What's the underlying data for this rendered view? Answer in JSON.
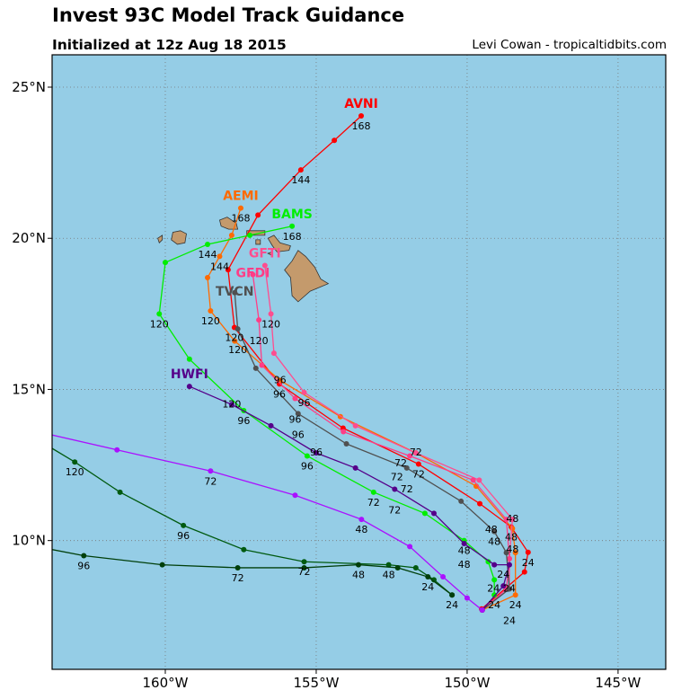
{
  "header": {
    "title": "Invest 93C Model Track Guidance",
    "subtitle": "Initialized at 12z Aug 18 2015",
    "credit": "Levi Cowan - tropicaltidbits.com"
  },
  "map": {
    "extent": {
      "lon_min": -163.75,
      "lon_max": -143.42,
      "lat_min": 5.74,
      "lat_max": 26.07
    },
    "ocean_color": "#95cde6",
    "land_color": "#c49a6c",
    "lat_ticks": [
      {
        "v": 25,
        "t": "25°N"
      },
      {
        "v": 20,
        "t": "20°N"
      },
      {
        "v": 15,
        "t": "15°N"
      },
      {
        "v": 10,
        "t": "10°N"
      }
    ],
    "lon_ticks": [
      {
        "v": -160,
        "t": "160°W"
      },
      {
        "v": -155,
        "t": "155°W"
      },
      {
        "v": -150,
        "t": "150°W"
      },
      {
        "v": -145,
        "t": "145°W"
      }
    ],
    "islands": [
      {
        "name": "Niihau",
        "pts": [
          [
            -160.25,
            20.0
          ],
          [
            -160.1,
            20.1
          ],
          [
            -160.1,
            19.95
          ],
          [
            -160.2,
            19.85
          ]
        ]
      },
      {
        "name": "Kauai",
        "pts": [
          [
            -159.75,
            20.2
          ],
          [
            -159.5,
            20.25
          ],
          [
            -159.3,
            20.15
          ],
          [
            -159.35,
            19.85
          ],
          [
            -159.6,
            19.8
          ],
          [
            -159.8,
            19.95
          ]
        ]
      },
      {
        "name": "Oahu",
        "pts": [
          [
            -158.2,
            20.6
          ],
          [
            -157.95,
            20.7
          ],
          [
            -157.65,
            20.5
          ],
          [
            -157.6,
            20.3
          ],
          [
            -157.9,
            20.3
          ],
          [
            -158.15,
            20.4
          ]
        ]
      },
      {
        "name": "Molokai",
        "pts": [
          [
            -157.3,
            20.25
          ],
          [
            -156.7,
            20.25
          ],
          [
            -156.7,
            20.1
          ],
          [
            -157.3,
            20.1
          ]
        ]
      },
      {
        "name": "Lanai",
        "pts": [
          [
            -157.0,
            19.95
          ],
          [
            -156.85,
            19.95
          ],
          [
            -156.85,
            19.8
          ],
          [
            -157.0,
            19.8
          ]
        ]
      },
      {
        "name": "Maui",
        "pts": [
          [
            -156.6,
            20.0
          ],
          [
            -156.4,
            20.1
          ],
          [
            -156.2,
            19.85
          ],
          [
            -155.85,
            19.75
          ],
          [
            -155.9,
            19.6
          ],
          [
            -156.3,
            19.55
          ],
          [
            -156.45,
            19.75
          ]
        ]
      },
      {
        "name": "Kahoolawe",
        "pts": [
          [
            -156.6,
            19.5
          ],
          [
            -156.45,
            19.55
          ],
          [
            -156.5,
            19.45
          ]
        ]
      },
      {
        "name": "Hawaii",
        "pts": [
          [
            -155.8,
            19.25
          ],
          [
            -155.6,
            19.6
          ],
          [
            -155.35,
            19.4
          ],
          [
            -155.05,
            19.05
          ],
          [
            -154.85,
            18.65
          ],
          [
            -154.6,
            18.5
          ],
          [
            -155.2,
            18.25
          ],
          [
            -155.6,
            17.9
          ],
          [
            -155.8,
            18.1
          ],
          [
            -155.85,
            18.7
          ],
          [
            -156.05,
            18.95
          ]
        ]
      }
    ]
  },
  "tracks": [
    {
      "name": "AVNI",
      "color": "#ff0000",
      "show_name": true,
      "pts": [
        [
          -149.52,
          7.74
        ],
        [
          -148.1,
          8.96
        ],
        [
          -147.98,
          9.61
        ],
        [
          -148.54,
          10.45
        ],
        [
          -149.58,
          11.22
        ],
        [
          -151.61,
          12.53
        ],
        [
          -154.11,
          13.72
        ],
        [
          -156.22,
          15.18
        ],
        [
          -157.71,
          17.05
        ],
        [
          -157.92,
          18.96
        ],
        [
          -156.93,
          20.77
        ],
        [
          -155.51,
          22.26
        ],
        [
          -154.4,
          23.24
        ],
        [
          -153.51,
          24.05
        ]
      ],
      "labels": [
        {
          "i": 2,
          "t": "24"
        },
        {
          "i": 3,
          "t": "48"
        },
        {
          "i": 5,
          "t": "72"
        },
        {
          "i": 7,
          "t": "96"
        },
        {
          "i": 8,
          "t": "120"
        },
        {
          "i": 11,
          "t": "144"
        },
        {
          "i": 13,
          "t": "168"
        }
      ]
    },
    {
      "name": "AEMI",
      "color": "#ff6a00",
      "show_name": true,
      "pts": [
        [
          -149.5,
          7.7
        ],
        [
          -148.4,
          8.2
        ],
        [
          -148.4,
          9.6
        ],
        [
          -148.5,
          10.4
        ],
        [
          -149.7,
          11.8
        ],
        [
          -151.7,
          12.9
        ],
        [
          -154.2,
          14.1
        ],
        [
          -156.2,
          15.3
        ],
        [
          -157.7,
          16.6
        ],
        [
          -158.5,
          17.6
        ],
        [
          -158.6,
          18.7
        ],
        [
          -158.2,
          19.4
        ],
        [
          -157.8,
          20.1
        ],
        [
          -157.5,
          21.0
        ]
      ],
      "labels": [
        {
          "i": 1,
          "t": "24"
        },
        {
          "i": 3,
          "t": "48"
        },
        {
          "i": 5,
          "t": "72"
        },
        {
          "i": 7,
          "t": "96"
        },
        {
          "i": 9,
          "t": "120"
        },
        {
          "i": 11,
          "t": "144"
        },
        {
          "i": 13,
          "t": "168"
        }
      ]
    },
    {
      "name": "BAMS",
      "color": "#00ee00",
      "show_name": true,
      "pts": [
        [
          -149.1,
          8.2
        ],
        [
          -149.1,
          8.7
        ],
        [
          -149.3,
          9.3
        ],
        [
          -150.1,
          10.0
        ],
        [
          -151.4,
          10.9
        ],
        [
          -153.1,
          11.6
        ],
        [
          -155.3,
          12.8
        ],
        [
          -157.4,
          14.3
        ],
        [
          -159.2,
          16.0
        ],
        [
          -160.2,
          17.5
        ],
        [
          -160.0,
          19.2
        ],
        [
          -158.6,
          19.8
        ],
        [
          -157.2,
          20.1
        ],
        [
          -155.8,
          20.4
        ]
      ],
      "labels": [
        {
          "i": 0,
          "t": "24"
        },
        {
          "i": 3,
          "t": "48"
        },
        {
          "i": 5,
          "t": "72"
        },
        {
          "i": 6,
          "t": "96"
        },
        {
          "i": 7,
          "t": "96"
        },
        {
          "i": 9,
          "t": "120"
        },
        {
          "i": 11,
          "t": "144"
        },
        {
          "i": 13,
          "t": "168"
        }
      ]
    },
    {
      "name": "GFTI",
      "color": "#ff4d8f",
      "show_name": true,
      "pts": [
        [
          -149.5,
          7.7
        ],
        [
          -148.6,
          8.4
        ],
        [
          -148.6,
          9.4
        ],
        [
          -148.5,
          10.7
        ],
        [
          -149.6,
          12.0
        ],
        [
          -151.7,
          12.9
        ],
        [
          -153.7,
          13.8
        ],
        [
          -155.4,
          14.9
        ],
        [
          -156.4,
          16.2
        ],
        [
          -156.5,
          17.5
        ],
        [
          -156.7,
          19.1
        ]
      ],
      "labels": [
        {
          "i": 1,
          "t": "24"
        },
        {
          "i": 3,
          "t": "48"
        },
        {
          "i": 5,
          "t": "72"
        },
        {
          "i": 7,
          "t": "96"
        },
        {
          "i": 9,
          "t": "120"
        }
      ]
    },
    {
      "name": "GFDI",
      "color": "#ff3d86",
      "show_name": true,
      "pts": [
        [
          -149.5,
          7.7
        ],
        [
          -148.7,
          8.4
        ],
        [
          -148.6,
          9.4
        ],
        [
          -148.7,
          10.7
        ],
        [
          -149.8,
          12.0
        ],
        [
          -151.9,
          12.8
        ],
        [
          -154.1,
          13.6
        ],
        [
          -155.7,
          14.7
        ],
        [
          -156.8,
          15.8
        ],
        [
          -156.9,
          17.3
        ],
        [
          -157.1,
          18.8
        ]
      ],
      "labels": [
        {
          "i": 1,
          "t": "24"
        },
        {
          "i": 3,
          "t": "48"
        },
        {
          "i": 5,
          "t": "72"
        },
        {
          "i": 7,
          "t": "96"
        },
        {
          "i": 9,
          "t": "120"
        }
      ]
    },
    {
      "name": "TVCN",
      "color": "#505050",
      "show_name": true,
      "pts": [
        [
          -149.5,
          7.7
        ],
        [
          -148.6,
          8.4
        ],
        [
          -148.7,
          9.6
        ],
        [
          -149.1,
          10.3
        ],
        [
          -150.2,
          11.3
        ],
        [
          -152.0,
          12.4
        ],
        [
          -154.0,
          13.2
        ],
        [
          -155.6,
          14.2
        ],
        [
          -157.0,
          15.7
        ],
        [
          -157.6,
          17.0
        ],
        [
          -157.7,
          18.2
        ]
      ],
      "labels": [
        {
          "i": 1,
          "t": "24"
        },
        {
          "i": 3,
          "t": "48"
        },
        {
          "i": 5,
          "t": "72"
        },
        {
          "i": 7,
          "t": "96"
        },
        {
          "i": 9,
          "t": "120"
        }
      ]
    },
    {
      "name": "HWFI",
      "color": "#55008a",
      "show_name": true,
      "pts": [
        [
          -149.5,
          7.7
        ],
        [
          -148.8,
          8.5
        ],
        [
          -148.6,
          9.2
        ],
        [
          -149.1,
          9.2
        ],
        [
          -150.1,
          9.9
        ],
        [
          -151.1,
          10.9
        ],
        [
          -152.4,
          11.7
        ],
        [
          -153.7,
          12.4
        ],
        [
          -155.0,
          12.9
        ],
        [
          -156.5,
          13.8
        ],
        [
          -157.8,
          14.5
        ],
        [
          -159.2,
          15.1
        ]
      ],
      "labels": [
        {
          "i": 1,
          "t": "24"
        },
        {
          "i": 4,
          "t": "48"
        },
        {
          "i": 6,
          "t": "72"
        },
        {
          "i": 8,
          "t": "96"
        },
        {
          "i": 10,
          "t": "120"
        }
      ]
    },
    {
      "name": "",
      "color": "#aa11ff",
      "show_name": false,
      "pts": [
        [
          -149.5,
          7.7
        ],
        [
          -150.0,
          8.1
        ],
        [
          -150.8,
          8.8
        ],
        [
          -151.9,
          9.8
        ],
        [
          -153.5,
          10.7
        ],
        [
          -155.7,
          11.5
        ],
        [
          -158.5,
          12.3
        ],
        [
          -161.6,
          13.0
        ],
        [
          -164.0,
          13.55
        ]
      ],
      "labels": [
        {
          "i": 4,
          "t": "48"
        },
        {
          "i": 6,
          "t": "72"
        }
      ]
    },
    {
      "name": "",
      "color": "#005a10",
      "show_name": false,
      "pts": [
        [
          -150.5,
          8.2
        ],
        [
          -151.1,
          8.7
        ],
        [
          -151.7,
          9.1
        ],
        [
          -152.6,
          9.2
        ],
        [
          -155.4,
          9.3
        ],
        [
          -157.4,
          9.7
        ],
        [
          -159.4,
          10.5
        ],
        [
          -161.5,
          11.6
        ],
        [
          -163.0,
          12.6
        ],
        [
          -164.0,
          13.2
        ]
      ],
      "labels": [
        {
          "i": 0,
          "t": "24"
        },
        {
          "i": 3,
          "t": "48"
        },
        {
          "i": 4,
          "t": "72"
        },
        {
          "i": 6,
          "t": "96"
        },
        {
          "i": 8,
          "t": "120"
        }
      ]
    },
    {
      "name": "",
      "color": "#003f0a",
      "show_name": false,
      "pts": [
        [
          -150.5,
          8.2
        ],
        [
          -151.3,
          8.8
        ],
        [
          -152.3,
          9.1
        ],
        [
          -153.6,
          9.2
        ],
        [
          -155.4,
          9.1
        ],
        [
          -157.6,
          9.1
        ],
        [
          -160.1,
          9.2
        ],
        [
          -162.7,
          9.5
        ],
        [
          -164.0,
          9.75
        ]
      ],
      "labels": [
        {
          "i": 1,
          "t": "24"
        },
        {
          "i": 3,
          "t": "48"
        },
        {
          "i": 5,
          "t": "72"
        },
        {
          "i": 7,
          "t": "96"
        }
      ]
    }
  ]
}
